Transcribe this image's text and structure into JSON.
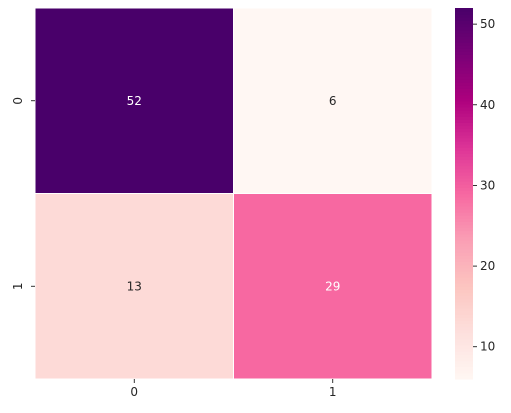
{
  "chart_data": {
    "type": "heatmap",
    "title": "",
    "xlabel": "",
    "ylabel": "",
    "x_categories": [
      "0",
      "1"
    ],
    "y_categories": [
      "0",
      "1"
    ],
    "values": [
      [
        52,
        6
      ],
      [
        13,
        29
      ]
    ],
    "annotations": true,
    "colormap": "RdPu",
    "cell_border_color": "#ffffff",
    "colorbar": {
      "min": 6,
      "max": 52,
      "ticks": [
        10,
        20,
        30,
        40,
        50
      ],
      "tick_labels": [
        "10",
        "20",
        "30",
        "40",
        "50"
      ],
      "placement": "right"
    }
  }
}
